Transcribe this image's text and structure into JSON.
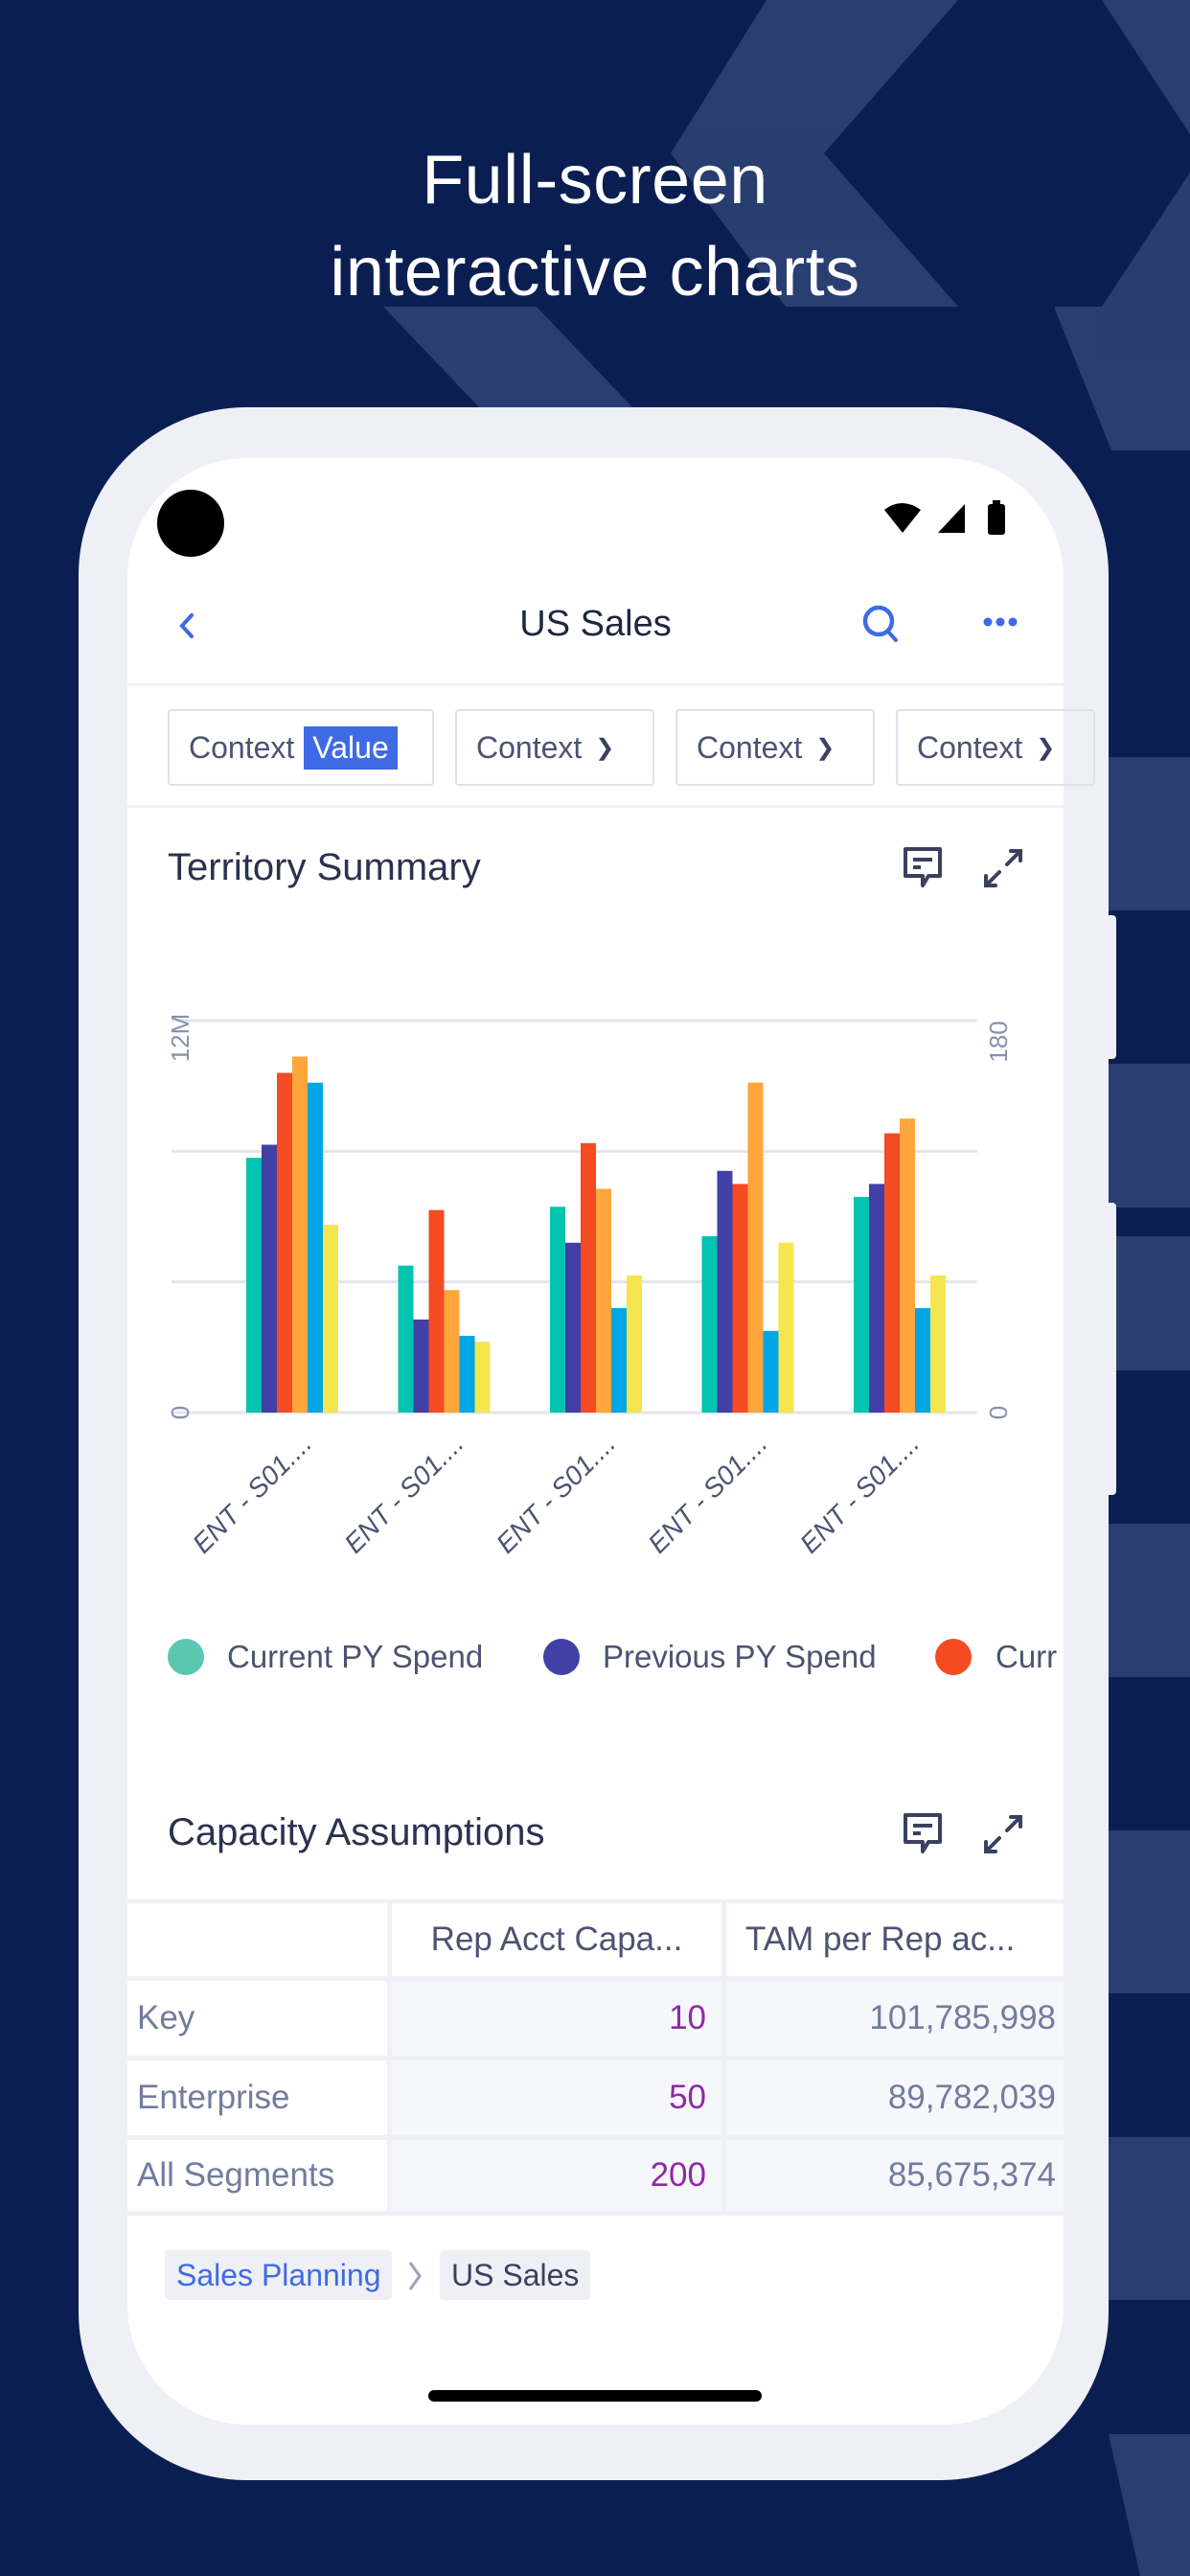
{
  "promo": {
    "headline_line1": "Full-screen",
    "headline_line2": "interactive charts"
  },
  "header": {
    "title": "US Sales",
    "back_icon": "chevron-left-icon",
    "search_icon": "search-icon",
    "more_icon": "more-horizontal-icon"
  },
  "filters": [
    {
      "label": "Context",
      "value": "Value"
    },
    {
      "label": "Context"
    },
    {
      "label": "Context"
    },
    {
      "label": "Context"
    }
  ],
  "territory_summary": {
    "title": "Territory Summary"
  },
  "chart_data": {
    "type": "bar",
    "title": "Territory Summary",
    "categories": [
      "ENT - S01....",
      "ENT - S01....",
      "ENT - S01....",
      "ENT - S01....",
      "ENT - S01...."
    ],
    "y_left": {
      "ticks": [
        "0",
        "12M"
      ],
      "range": [
        0,
        12000000
      ]
    },
    "y_right": {
      "ticks": [
        "0",
        "180"
      ],
      "range": [
        0,
        180
      ]
    },
    "grid": true,
    "series": [
      {
        "name": "Current PY Spend",
        "color": "#00c4b0",
        "values": [
          7.8,
          4.5,
          6.3,
          5.4,
          6.6
        ]
      },
      {
        "name": "Previous PY Spend",
        "color": "#4040a6",
        "values": [
          8.2,
          2.85,
          5.2,
          7.4,
          7.0
        ]
      },
      {
        "name": "Curr",
        "color": "#f44b23",
        "values": [
          10.4,
          6.2,
          8.25,
          7.0,
          8.55
        ]
      },
      {
        "color": "#ffa53b",
        "values": [
          10.9,
          3.75,
          6.85,
          10.1,
          9.0
        ]
      },
      {
        "color": "#00a6e6",
        "values": [
          10.1,
          2.35,
          3.2,
          2.5,
          3.2
        ]
      },
      {
        "color": "#f5e64f",
        "values": [
          5.75,
          2.17,
          4.2,
          5.2,
          4.2
        ]
      }
    ],
    "value_unit": "M",
    "legend_position": "bottom"
  },
  "capacity": {
    "title": "Capacity Assumptions",
    "columns": [
      "",
      "Rep Acct Capa...",
      "TAM per Rep ac..."
    ],
    "rows": [
      {
        "label": "Key",
        "rep_acct_capacity": "10",
        "tam_per_rep": "101,785,998"
      },
      {
        "label": "Enterprise",
        "rep_acct_capacity": "50",
        "tam_per_rep": "89,782,039"
      },
      {
        "label": "All Segments",
        "rep_acct_capacity": "200",
        "tam_per_rep": "85,675,374"
      }
    ]
  },
  "breadcrumb": [
    "Sales Planning",
    "US Sales"
  ],
  "colors": {
    "accent": "#3f6ae5",
    "background": "#0b1e52",
    "value_purple": "#8e2aa6"
  }
}
